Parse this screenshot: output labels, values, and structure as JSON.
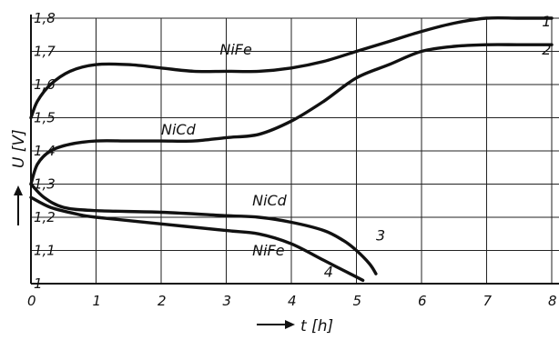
{
  "chart_data": {
    "type": "line",
    "title": "",
    "xlabel": "t [h]",
    "ylabel": "U [V]",
    "xlim": [
      0,
      8
    ],
    "ylim": [
      1.0,
      1.8
    ],
    "x_ticks": [
      {
        "value": 0,
        "label": "0"
      },
      {
        "value": 1,
        "label": "1"
      },
      {
        "value": 2,
        "label": "2"
      },
      {
        "value": 3,
        "label": "3"
      },
      {
        "value": 4,
        "label": "4"
      },
      {
        "value": 5,
        "label": "5"
      },
      {
        "value": 6,
        "label": "6"
      },
      {
        "value": 7,
        "label": "7"
      },
      {
        "value": 8,
        "label": "8"
      }
    ],
    "y_ticks": [
      {
        "value": 1.0,
        "label": "1"
      },
      {
        "value": 1.1,
        "label": "1,1"
      },
      {
        "value": 1.2,
        "label": "1,2"
      },
      {
        "value": 1.3,
        "label": "1,3"
      },
      {
        "value": 1.4,
        "label": "1,4"
      },
      {
        "value": 1.5,
        "label": "1,5"
      },
      {
        "value": 1.6,
        "label": "1,6"
      },
      {
        "value": 1.7,
        "label": "1,7"
      },
      {
        "value": 1.8,
        "label": "1,8"
      }
    ],
    "grid": true,
    "series": [
      {
        "name": "1",
        "label": "NiFe",
        "points": [
          [
            0,
            1.5
          ],
          [
            0.1,
            1.55
          ],
          [
            0.3,
            1.6
          ],
          [
            0.6,
            1.64
          ],
          [
            1,
            1.66
          ],
          [
            1.5,
            1.66
          ],
          [
            2,
            1.65
          ],
          [
            2.5,
            1.64
          ],
          [
            3,
            1.64
          ],
          [
            3.5,
            1.64
          ],
          [
            4,
            1.65
          ],
          [
            4.5,
            1.67
          ],
          [
            5,
            1.7
          ],
          [
            5.5,
            1.73
          ],
          [
            6,
            1.76
          ],
          [
            6.5,
            1.785
          ],
          [
            7,
            1.8
          ],
          [
            7.5,
            1.8
          ],
          [
            8,
            1.8
          ]
        ]
      },
      {
        "name": "2",
        "label": "NiCd",
        "points": [
          [
            0,
            1.3
          ],
          [
            0.1,
            1.36
          ],
          [
            0.3,
            1.4
          ],
          [
            0.6,
            1.42
          ],
          [
            1,
            1.43
          ],
          [
            1.5,
            1.43
          ],
          [
            2,
            1.43
          ],
          [
            2.5,
            1.43
          ],
          [
            3,
            1.44
          ],
          [
            3.5,
            1.45
          ],
          [
            4,
            1.49
          ],
          [
            4.5,
            1.55
          ],
          [
            5,
            1.62
          ],
          [
            5.5,
            1.66
          ],
          [
            6,
            1.7
          ],
          [
            6.5,
            1.715
          ],
          [
            7,
            1.72
          ],
          [
            7.5,
            1.72
          ],
          [
            8,
            1.72
          ]
        ]
      },
      {
        "name": "3",
        "label": "NiCd",
        "points": [
          [
            0,
            1.3
          ],
          [
            0.2,
            1.26
          ],
          [
            0.5,
            1.23
          ],
          [
            1,
            1.22
          ],
          [
            2,
            1.215
          ],
          [
            3,
            1.205
          ],
          [
            3.5,
            1.2
          ],
          [
            4,
            1.185
          ],
          [
            4.5,
            1.16
          ],
          [
            4.8,
            1.13
          ],
          [
            5,
            1.1
          ],
          [
            5.2,
            1.06
          ],
          [
            5.3,
            1.03
          ]
        ]
      },
      {
        "name": "4",
        "label": "NiFe",
        "points": [
          [
            0,
            1.26
          ],
          [
            0.3,
            1.23
          ],
          [
            0.7,
            1.21
          ],
          [
            1,
            1.2
          ],
          [
            2,
            1.18
          ],
          [
            3,
            1.16
          ],
          [
            3.5,
            1.15
          ],
          [
            4,
            1.12
          ],
          [
            4.5,
            1.07
          ],
          [
            4.8,
            1.04
          ],
          [
            5.1,
            1.01
          ]
        ]
      }
    ],
    "annotations": [
      {
        "text": "NiFe",
        "x": 2.9,
        "y": 1.69
      },
      {
        "text": "NiCd",
        "x": 2.0,
        "y": 1.45
      },
      {
        "text": "NiCd",
        "x": 3.4,
        "y": 1.235
      },
      {
        "text": "NiFe",
        "x": 3.4,
        "y": 1.085
      },
      {
        "text": "1",
        "x": 7.85,
        "y": 1.775
      },
      {
        "text": "2",
        "x": 7.85,
        "y": 1.69
      },
      {
        "text": "3",
        "x": 5.3,
        "y": 1.13
      },
      {
        "text": "4",
        "x": 4.5,
        "y": 1.02
      }
    ]
  }
}
